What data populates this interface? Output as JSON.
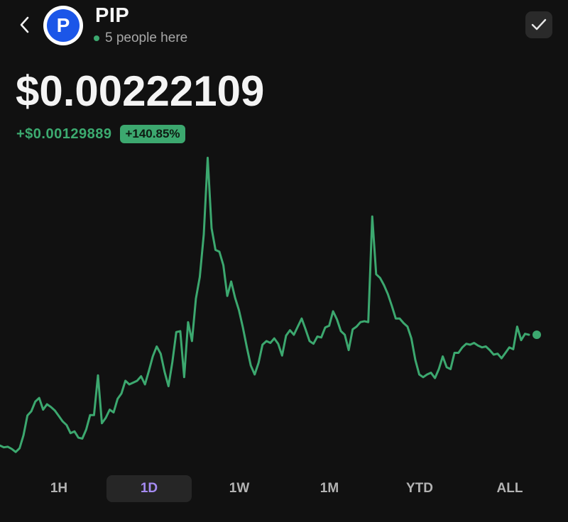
{
  "header": {
    "token_name": "PIP",
    "presence_text": "5 people here",
    "avatar_letter": "P"
  },
  "price": {
    "value": "$0.00222109",
    "change_abs": "+$0.00129889",
    "change_pct": "+140.85%"
  },
  "colors": {
    "accent_green": "#3ca86f",
    "active_tab": "#a58bf2",
    "avatar_blue": "#1b56e8",
    "background": "#111111"
  },
  "ranges": {
    "tabs": [
      "1H",
      "1D",
      "1W",
      "1M",
      "YTD",
      "ALL"
    ],
    "selected": "1D"
  },
  "chart_data": {
    "type": "line",
    "title": "",
    "xlabel": "",
    "ylabel": "",
    "grid": false,
    "ylim": [
      0.0009,
      0.0042
    ],
    "series": [
      {
        "values": [
          0.000992,
          0.000973,
          0.000979,
          0.000955,
          0.000921,
          0.000963,
          0.001107,
          0.001325,
          0.001372,
          0.00148,
          0.00152,
          0.00139,
          0.00145,
          0.00142,
          0.00138,
          0.00132,
          0.00126,
          0.00122,
          0.00113,
          0.00115,
          0.00108,
          0.00107,
          0.00117,
          0.00133,
          0.00133,
          0.00177,
          0.00124,
          0.0013,
          0.00139,
          0.00136,
          0.00151,
          0.00157,
          0.00171,
          0.00167,
          0.00169,
          0.00171,
          0.00176,
          0.00167,
          0.00182,
          0.00198,
          0.00209,
          0.00201,
          0.00181,
          0.00165,
          0.00192,
          0.00225,
          0.00226,
          0.00175,
          0.00236,
          0.00215,
          0.00262,
          0.00286,
          0.00333,
          0.00418,
          0.0034,
          0.00316,
          0.00314,
          0.00299,
          0.00265,
          0.00281,
          0.00263,
          0.00249,
          0.0023,
          0.00208,
          0.00188,
          0.00178,
          0.00191,
          0.00211,
          0.00215,
          0.00213,
          0.00218,
          0.00212,
          0.00199,
          0.00221,
          0.00227,
          0.00222,
          0.00231,
          0.0024,
          0.00228,
          0.00215,
          0.00212,
          0.0022,
          0.00219,
          0.0023,
          0.00232,
          0.00248,
          0.00239,
          0.00226,
          0.00222,
          0.00205,
          0.00228,
          0.00231,
          0.00236,
          0.00237,
          0.00236,
          0.00353,
          0.00289,
          0.00285,
          0.00277,
          0.00267,
          0.00254,
          0.0024,
          0.0024,
          0.00235,
          0.00231,
          0.00218,
          0.00194,
          0.00178,
          0.00175,
          0.00178,
          0.0018,
          0.00174,
          0.00184,
          0.00198,
          0.00186,
          0.00184,
          0.00202,
          0.00202,
          0.00208,
          0.00212,
          0.00211,
          0.00213,
          0.0021,
          0.00208,
          0.00209,
          0.00205,
          0.002,
          0.00201,
          0.00196,
          0.00202,
          0.00208,
          0.00206,
          0.00231,
          0.00216,
          0.00223,
          0.00222
        ]
      }
    ]
  }
}
